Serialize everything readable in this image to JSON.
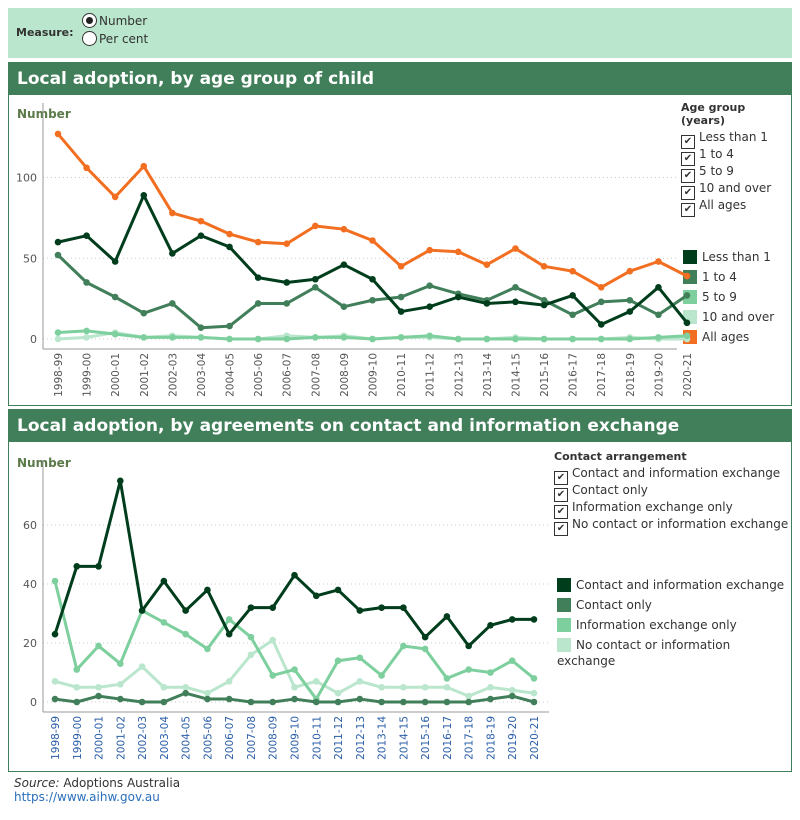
{
  "measure": {
    "label": "Measure:",
    "options": [
      {
        "label": "Number",
        "selected": true
      },
      {
        "label": "Per cent",
        "selected": false
      }
    ]
  },
  "colors": {
    "header": "#417e5a",
    "measure_bg": "#b9e6cc",
    "less_than_1": "#003d1c",
    "one_to_4": "#417e5a",
    "five_to_9": "#7dcf9d",
    "ten_over": "#b9e6cc",
    "all_ages": "#f26f21"
  },
  "chart_data": [
    {
      "type": "line",
      "title": "Local adoption, by age group of child",
      "ylabel": "Number",
      "ylim": [
        0,
        135
      ],
      "yticks": [
        0,
        50,
        100
      ],
      "grid": true,
      "filter_title": "Age group (years)",
      "filter_items": [
        "Less than 1",
        "1 to 4",
        "5 to 9",
        "10 and over",
        "All ages"
      ],
      "categories": [
        "1998-99",
        "1999-00",
        "2000-01",
        "2001-02",
        "2002-03",
        "2003-04",
        "2004-05",
        "2005-06",
        "2006-07",
        "2007-08",
        "2008-09",
        "2009-10",
        "2010-11",
        "2011-12",
        "2012-13",
        "2013-14",
        "2014-15",
        "2015-16",
        "2016-17",
        "2017-18",
        "2018-19",
        "2019-20",
        "2020-21"
      ],
      "series": [
        {
          "name": "10 and over",
          "color": "#b9e6cc",
          "values": [
            0,
            1,
            4,
            1,
            2,
            1,
            0,
            0,
            2,
            1,
            2,
            0,
            1,
            1,
            0,
            0,
            1,
            0,
            0,
            0,
            1,
            0,
            0
          ]
        },
        {
          "name": "5 to 9",
          "color": "#7dcf9d",
          "values": [
            4,
            5,
            3,
            1,
            1,
            1,
            0,
            0,
            0,
            1,
            1,
            0,
            1,
            2,
            0,
            0,
            0,
            0,
            0,
            0,
            0,
            1,
            2
          ]
        },
        {
          "name": "1 to 4",
          "color": "#417e5a",
          "values": [
            52,
            35,
            26,
            16,
            22,
            7,
            8,
            22,
            22,
            32,
            20,
            24,
            26,
            33,
            28,
            24,
            32,
            24,
            15,
            23,
            24,
            15,
            27
          ]
        },
        {
          "name": "Less than 1",
          "color": "#003d1c",
          "values": [
            60,
            64,
            48,
            89,
            53,
            64,
            57,
            38,
            35,
            37,
            46,
            37,
            17,
            20,
            26,
            22,
            23,
            21,
            27,
            9,
            17,
            32,
            10
          ]
        },
        {
          "name": "All ages",
          "color": "#f26f21",
          "values": [
            127,
            106,
            88,
            107,
            78,
            73,
            65,
            60,
            59,
            70,
            68,
            61,
            45,
            55,
            54,
            46,
            56,
            45,
            42,
            32,
            42,
            48,
            39
          ]
        }
      ],
      "legend": [
        "Less than 1",
        "1 to 4",
        "5 to 9",
        "10 and over",
        "All ages"
      ]
    },
    {
      "type": "line",
      "title": "Local adoption, by agreements on contact and information exchange",
      "ylabel": "Number",
      "ylim": [
        0,
        78
      ],
      "yticks": [
        0,
        20,
        40,
        60
      ],
      "grid": true,
      "filter_title": "Contact arrangement",
      "filter_items": [
        "Contact and information exchange",
        "Contact only",
        "Information exchange only",
        "No contact or information exchange"
      ],
      "categories": [
        "1998-99",
        "1999-00",
        "2000-01",
        "2001-02",
        "2002-03",
        "2003-04",
        "2004-05",
        "2005-06",
        "2006-07",
        "2007-08",
        "2008-09",
        "2009-10",
        "2010-11",
        "2011-12",
        "2012-13",
        "2013-14",
        "2014-15",
        "2015-16",
        "2016-17",
        "2017-18",
        "2018-19",
        "2019-20",
        "2020-21"
      ],
      "series": [
        {
          "name": "No contact or information exchange",
          "color": "#b9e6cc",
          "values": [
            7,
            5,
            5,
            6,
            12,
            5,
            5,
            3,
            7,
            16,
            21,
            5,
            7,
            3,
            7,
            5,
            5,
            5,
            5,
            2,
            5,
            4,
            3
          ]
        },
        {
          "name": "Information exchange only",
          "color": "#7dcf9d",
          "values": [
            41,
            11,
            19,
            13,
            31,
            27,
            23,
            18,
            28,
            22,
            9,
            11,
            1,
            14,
            15,
            9,
            19,
            18,
            8,
            11,
            10,
            14,
            8
          ]
        },
        {
          "name": "Contact only",
          "color": "#417e5a",
          "values": [
            1,
            0,
            2,
            1,
            0,
            0,
            3,
            1,
            1,
            0,
            0,
            1,
            0,
            0,
            1,
            0,
            0,
            0,
            0,
            0,
            1,
            2,
            0
          ]
        },
        {
          "name": "Contact and information exchange",
          "color": "#003d1c",
          "values": [
            23,
            46,
            46,
            75,
            31,
            41,
            31,
            38,
            23,
            32,
            32,
            43,
            36,
            38,
            31,
            32,
            32,
            22,
            29,
            19,
            26,
            28,
            28
          ]
        }
      ],
      "legend": [
        "Contact and information exchange",
        "Contact only",
        "Information exchange only",
        "No contact or information exchange"
      ]
    }
  ],
  "source": {
    "label": "Source:",
    "text": " Adoptions Australia",
    "link": "https://www.aihw.gov.au"
  }
}
